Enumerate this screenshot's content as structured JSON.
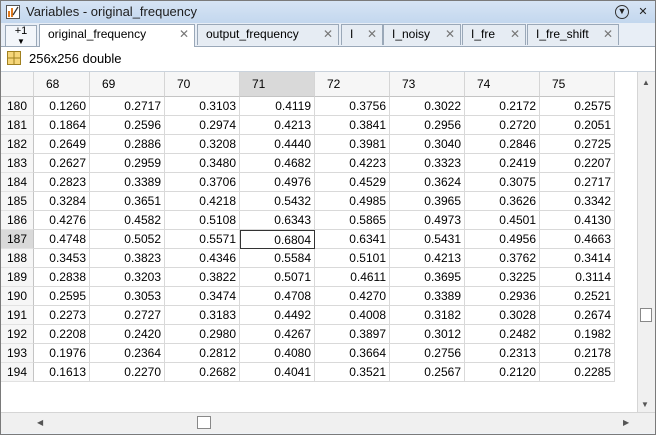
{
  "window": {
    "title": "Variables - original_frequency"
  },
  "tabs": {
    "plus_label": "+1",
    "items": [
      {
        "label": "original_frequency",
        "active": true
      },
      {
        "label": "output_frequency",
        "active": false
      },
      {
        "label": "I",
        "active": false
      },
      {
        "label": "I_noisy",
        "active": false
      },
      {
        "label": "I_fre",
        "active": false
      },
      {
        "label": "I_fre_shift",
        "active": false
      }
    ]
  },
  "info": {
    "text": "256x256 double"
  },
  "table": {
    "columns": [
      "68",
      "69",
      "70",
      "71",
      "72",
      "73",
      "74",
      "75"
    ],
    "selected_column": "71",
    "selected_row": "187",
    "rows": [
      {
        "label": "180",
        "values": [
          "0.1260",
          "0.2717",
          "0.3103",
          "0.4119",
          "0.3756",
          "0.3022",
          "0.2172",
          "0.2575"
        ]
      },
      {
        "label": "181",
        "values": [
          "0.1864",
          "0.2596",
          "0.2974",
          "0.4213",
          "0.3841",
          "0.2956",
          "0.2720",
          "0.2051"
        ]
      },
      {
        "label": "182",
        "values": [
          "0.2649",
          "0.2886",
          "0.3208",
          "0.4440",
          "0.3981",
          "0.3040",
          "0.2846",
          "0.2725"
        ]
      },
      {
        "label": "183",
        "values": [
          "0.2627",
          "0.2959",
          "0.3480",
          "0.4682",
          "0.4223",
          "0.3323",
          "0.2419",
          "0.2207"
        ]
      },
      {
        "label": "184",
        "values": [
          "0.2823",
          "0.3389",
          "0.3706",
          "0.4976",
          "0.4529",
          "0.3624",
          "0.3075",
          "0.2717"
        ]
      },
      {
        "label": "185",
        "values": [
          "0.3284",
          "0.3651",
          "0.4218",
          "0.5432",
          "0.4985",
          "0.3965",
          "0.3626",
          "0.3342"
        ]
      },
      {
        "label": "186",
        "values": [
          "0.4276",
          "0.4582",
          "0.5108",
          "0.6343",
          "0.5865",
          "0.4973",
          "0.4501",
          "0.4130"
        ]
      },
      {
        "label": "187",
        "values": [
          "0.4748",
          "0.5052",
          "0.5571",
          "0.6804",
          "0.6341",
          "0.5431",
          "0.4956",
          "0.4663"
        ]
      },
      {
        "label": "188",
        "values": [
          "0.3453",
          "0.3823",
          "0.4346",
          "0.5584",
          "0.5101",
          "0.4213",
          "0.3762",
          "0.3414"
        ]
      },
      {
        "label": "189",
        "values": [
          "0.2838",
          "0.3203",
          "0.3822",
          "0.5071",
          "0.4611",
          "0.3695",
          "0.3225",
          "0.3114"
        ]
      },
      {
        "label": "190",
        "values": [
          "0.2595",
          "0.3053",
          "0.3474",
          "0.4708",
          "0.4270",
          "0.3389",
          "0.2936",
          "0.2521"
        ]
      },
      {
        "label": "191",
        "values": [
          "0.2273",
          "0.2727",
          "0.3183",
          "0.4492",
          "0.4008",
          "0.3182",
          "0.3028",
          "0.2674"
        ]
      },
      {
        "label": "192",
        "values": [
          "0.2208",
          "0.2420",
          "0.2980",
          "0.4267",
          "0.3897",
          "0.3012",
          "0.2482",
          "0.1982"
        ]
      },
      {
        "label": "193",
        "values": [
          "0.1976",
          "0.2364",
          "0.2812",
          "0.4080",
          "0.3664",
          "0.2756",
          "0.2313",
          "0.2178"
        ]
      },
      {
        "label": "194",
        "values": [
          "0.1613",
          "0.2270",
          "0.2682",
          "0.4041",
          "0.3521",
          "0.2567",
          "0.2120",
          "0.2285"
        ]
      }
    ]
  },
  "icons": {
    "app": "variables-editor-icon",
    "menu": "circle-down-arrow-icon",
    "close": "close-icon",
    "grid": "matrix-grid-icon"
  },
  "colors": {
    "selected_header": "#d9d9d9",
    "titlebar": "#c3d7ee",
    "selected_cell_border": "#333333"
  }
}
